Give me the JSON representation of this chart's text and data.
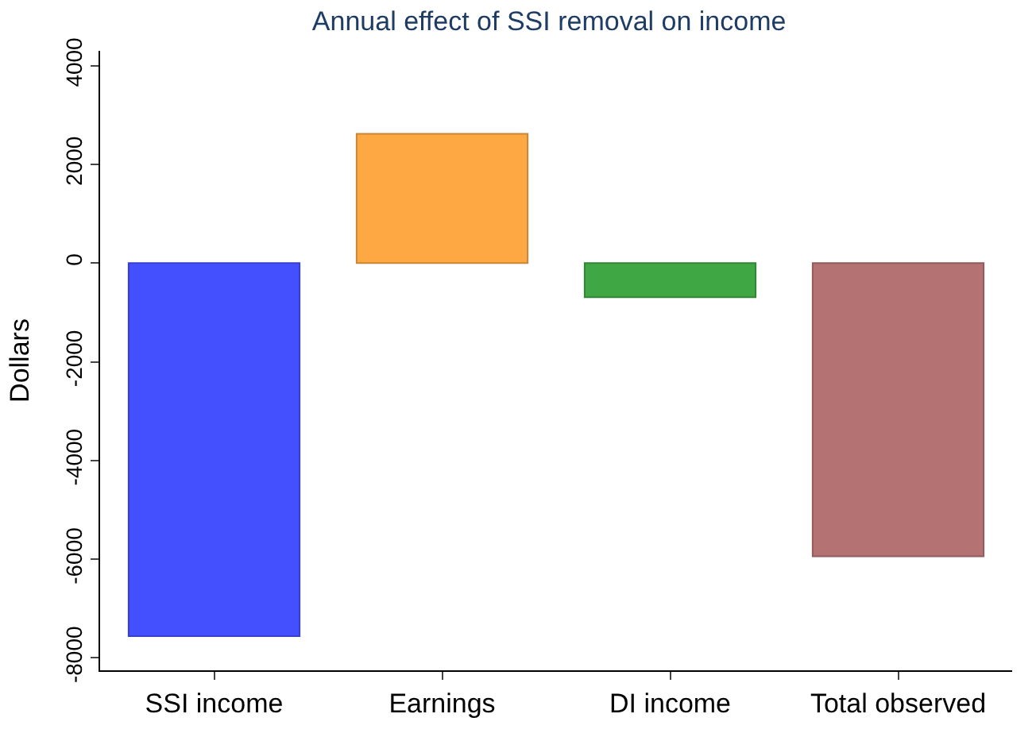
{
  "chart_data": {
    "type": "bar",
    "title": "Annual effect of SSI removal on income",
    "ylabel": "Dollars",
    "categories": [
      "SSI income",
      "Earnings",
      "DI income",
      "Total observed"
    ],
    "values": [
      -7560,
      2620,
      -690,
      -5940
    ],
    "colors": [
      "#4450fe",
      "#fea843",
      "#3fa743",
      "#b57273"
    ],
    "ylim": [
      -8250,
      4300
    ],
    "yticks": [
      -8000,
      -6000,
      -4000,
      -2000,
      0,
      2000,
      4000
    ]
  }
}
